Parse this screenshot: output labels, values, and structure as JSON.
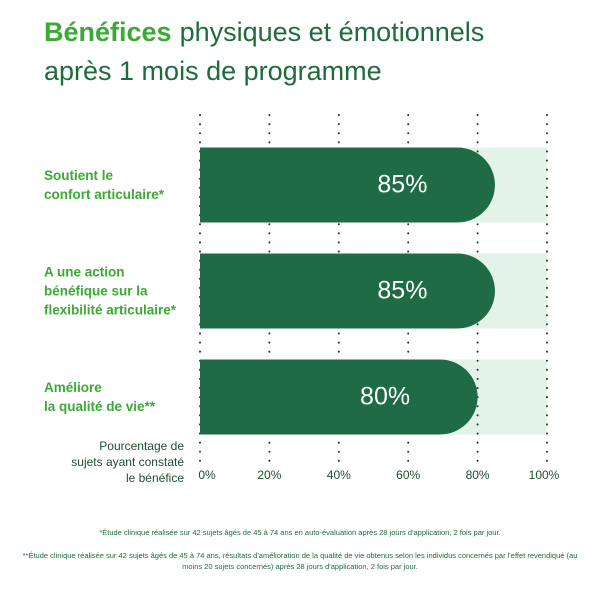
{
  "chart_data": {
    "type": "bar",
    "orientation": "horizontal",
    "title_parts": [
      "Bénéfices",
      "physiques et émotionnels",
      "après 1 mois de programme"
    ],
    "categories": [
      "Soutient le\nconfort articulaire*",
      "A une action\nbénéfique sur la\nflexibilité articulaire*",
      "Améliore\nla qualité de vie**"
    ],
    "values": [
      85,
      85,
      80
    ],
    "value_labels": [
      "85%",
      "85%",
      "80%"
    ],
    "color": "#1f6b45",
    "track_color": "#e4f3e8",
    "xlim": [
      0,
      100
    ],
    "xticks": [
      {
        "value": 0,
        "label": "0%"
      },
      {
        "value": 20,
        "label": "20%"
      },
      {
        "value": 40,
        "label": "40%"
      },
      {
        "value": 60,
        "label": "60%"
      },
      {
        "value": 80,
        "label": "80%"
      },
      {
        "value": 100,
        "label": "100%"
      }
    ],
    "x_axis_label": "Pourcentage de\nsujets ayant constaté\nle bénéfice",
    "grid": true,
    "footnotes": [
      "*Étude clinique réalisée sur 42 sujets âgés de 45 à 74 ans en auto-évaluation après 28 jours d'application, 2 fois par jour.",
      "**Étude clinique réalisée sur 42 sujets âgés de 45 à 74 ans, résultats d'amélioration de la qualité de vie obtenus selon les individus concernés par l'effet revendiqué (au moins 20 sujets concernés) après 28 jours d'application, 2 fois par jour."
    ]
  }
}
